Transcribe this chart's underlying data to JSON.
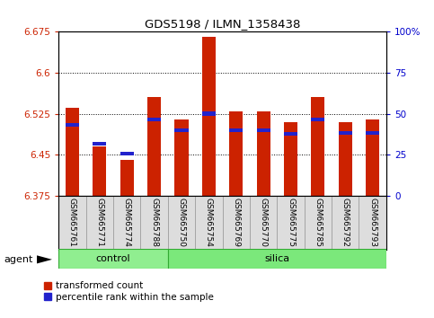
{
  "title": "GDS5198 / ILMN_1358438",
  "samples": [
    "GSM665761",
    "GSM665771",
    "GSM665774",
    "GSM665788",
    "GSM665750",
    "GSM665754",
    "GSM665769",
    "GSM665770",
    "GSM665775",
    "GSM665785",
    "GSM665792",
    "GSM665793"
  ],
  "groups": [
    "control",
    "control",
    "control",
    "control",
    "silica",
    "silica",
    "silica",
    "silica",
    "silica",
    "silica",
    "silica",
    "silica"
  ],
  "red_values": [
    6.535,
    6.465,
    6.44,
    6.555,
    6.515,
    6.665,
    6.53,
    6.53,
    6.51,
    6.555,
    6.51,
    6.515
  ],
  "blue_values": [
    6.505,
    6.47,
    6.452,
    6.515,
    6.495,
    6.525,
    6.495,
    6.495,
    6.488,
    6.515,
    6.49,
    6.49
  ],
  "y_min": 6.375,
  "y_max": 6.675,
  "y_ticks_left": [
    6.375,
    6.45,
    6.525,
    6.6,
    6.675
  ],
  "y_ticks_right": [
    0,
    25,
    50,
    75,
    100
  ],
  "bar_color": "#cc2200",
  "blue_color": "#2222cc",
  "control_color": "#90ee90",
  "silica_color": "#7be87b",
  "group_border_color": "#33aa33",
  "group_label_control": "control",
  "group_label_silica": "silica",
  "legend_red": "transformed count",
  "legend_blue": "percentile rank within the sample",
  "agent_label": "agent"
}
